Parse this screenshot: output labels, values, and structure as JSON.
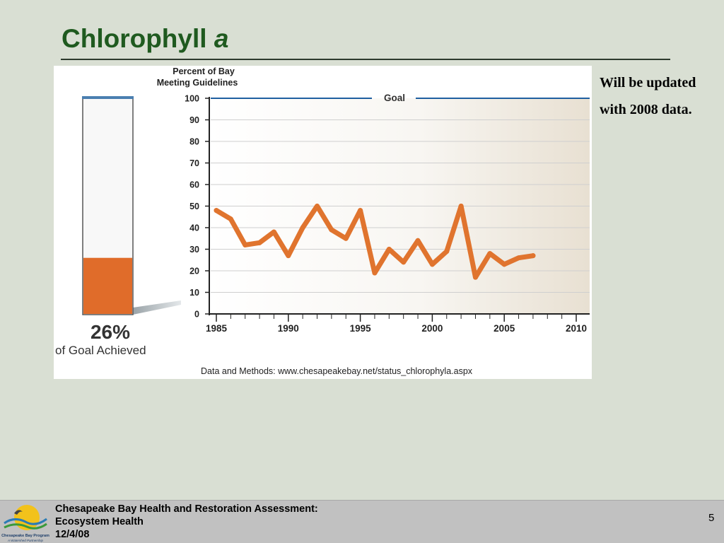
{
  "slide": {
    "title_main": "Chlorophyll",
    "title_italic": "a",
    "note_line1": "Will be updated",
    "note_line2": "with 2008 data.",
    "page_number": "5"
  },
  "footer": {
    "line1": "Chesapeake Bay Health and Restoration Assessment:",
    "line2": "Ecosystem Health",
    "line3": "12/4/08",
    "logo_text": "Chesapeake Bay Program",
    "logo_tagline": "A Watershed Partnership"
  },
  "colors": {
    "series": "#e0742e",
    "goal": "#1f5fa0",
    "title": "#1f5a1f"
  },
  "chart_data": {
    "type": "line",
    "ylabel": "Percent of  Bay Meeting Guidelines",
    "ylim": [
      0,
      100
    ],
    "xlim": [
      1985,
      2010
    ],
    "yticks": [
      0,
      10,
      20,
      30,
      40,
      50,
      60,
      70,
      80,
      90,
      100
    ],
    "xticks": [
      1985,
      1990,
      1995,
      2000,
      2005,
      2010
    ],
    "goal": {
      "label": "Goal",
      "value": 100
    },
    "grid": true,
    "source": "Data and Methods: www.chesapeakebay.net/status_chlorophyla.aspx",
    "x": [
      1985,
      1986,
      1987,
      1988,
      1989,
      1990,
      1991,
      1992,
      1993,
      1994,
      1995,
      1996,
      1997,
      1998,
      1999,
      2000,
      2001,
      2002,
      2003,
      2004,
      2005,
      2006,
      2007
    ],
    "values": [
      48,
      44,
      32,
      33,
      38,
      27,
      40,
      50,
      39,
      35,
      48,
      19,
      30,
      24,
      34,
      23,
      29,
      50,
      17,
      28,
      23,
      26,
      27
    ],
    "gauge": {
      "value": 26,
      "value_label": "26%",
      "caption": "of Goal Achieved"
    }
  }
}
